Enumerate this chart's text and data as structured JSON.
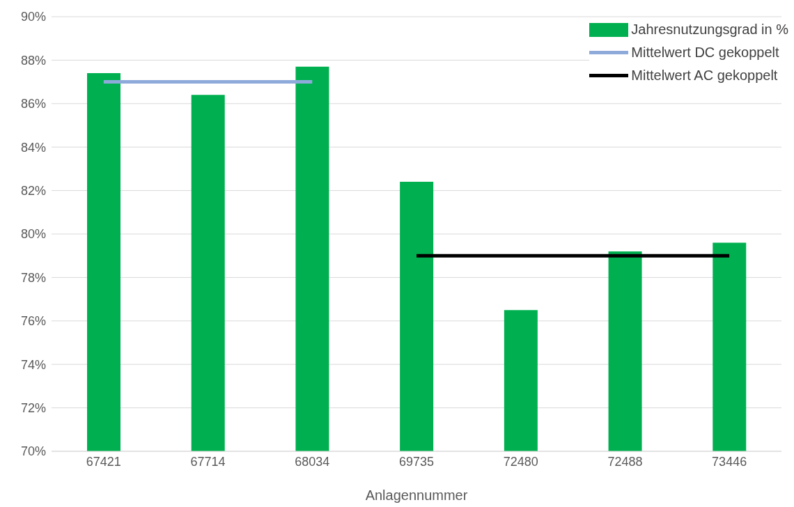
{
  "chart_data": {
    "type": "bar",
    "xlabel": "Anlagennummer",
    "categories": [
      "67421",
      "67714",
      "68034",
      "69735",
      "72480",
      "72488",
      "73446"
    ],
    "series": [
      {
        "name": "Jahresnutzungsgrad in %",
        "color": "#00b050",
        "values": [
          87.4,
          86.4,
          87.7,
          82.4,
          76.5,
          79.2,
          79.6
        ]
      },
      {
        "name": "Mittelwert DC gekoppelt",
        "type": "line",
        "color": "#8eaadb",
        "values": [
          87.0,
          87.0,
          87.0,
          null,
          null,
          null,
          null
        ]
      },
      {
        "name": "Mittelwert AC gekoppelt",
        "type": "line",
        "color": "#000000",
        "values": [
          null,
          null,
          null,
          79.0,
          79.0,
          79.0,
          79.0
        ]
      }
    ],
    "ylim": [
      70,
      90
    ],
    "yticks": [
      {
        "value": 70,
        "label": "70%"
      },
      {
        "value": 72,
        "label": "72%"
      },
      {
        "value": 74,
        "label": "74%"
      },
      {
        "value": 76,
        "label": "76%"
      },
      {
        "value": 78,
        "label": "78%"
      },
      {
        "value": 80,
        "label": "80%"
      },
      {
        "value": 82,
        "label": "82%"
      },
      {
        "value": 84,
        "label": "84%"
      },
      {
        "value": 86,
        "label": "86%"
      },
      {
        "value": 88,
        "label": "88%"
      },
      {
        "value": 90,
        "label": "90%"
      }
    ],
    "grid": "y",
    "legend": "top right",
    "marker": "none",
    "line_style": "solid"
  }
}
